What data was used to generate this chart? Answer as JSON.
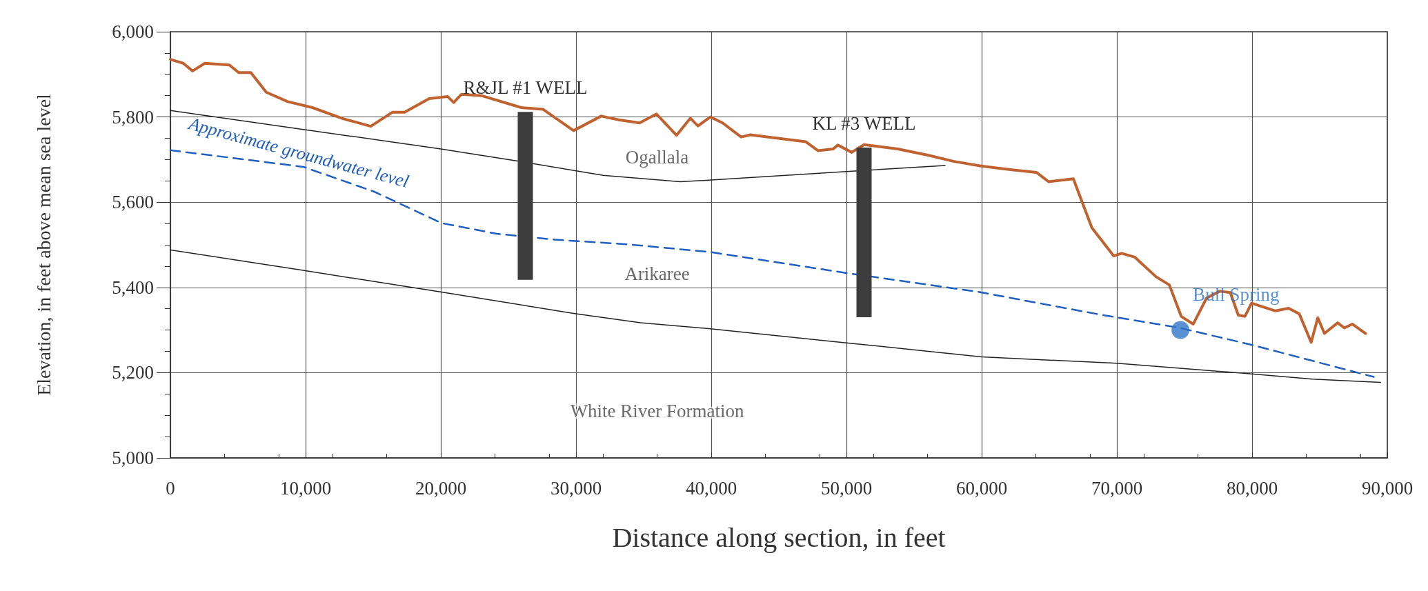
{
  "chart_data": {
    "type": "line",
    "xlabel": "Distance along section, in feet",
    "ylabel": "Elevation, in feet above mean sea level",
    "xlim": [
      0,
      90000
    ],
    "xticks": [
      0,
      {
        "value": 10000,
        "label": "10,000"
      },
      {
        "value": 20000,
        "label": "20,000"
      },
      {
        "value": 30000,
        "label": "30,000"
      },
      {
        "value": 40000,
        "label": "40,000"
      },
      {
        "value": 50000,
        "label": "50,000"
      },
      {
        "value": 60000,
        "label": "60,000"
      },
      {
        "value": 70000,
        "label": "70,000"
      },
      {
        "value": 80000,
        "label": "80,000"
      },
      {
        "value": 90000,
        "label": "90,000"
      }
    ],
    "ylim": [
      5000,
      6000
    ],
    "yticks": [
      {
        "value": 5000,
        "label": "5,000"
      },
      {
        "value": 5200,
        "label": "5,200"
      },
      {
        "value": 5400,
        "label": "5,400"
      },
      {
        "value": 5600,
        "label": "5,600"
      },
      {
        "value": 5800,
        "label": "5,800"
      },
      {
        "value": 6000,
        "label": "6,000"
      }
    ],
    "grid": true,
    "marker": "none",
    "series": [
      {
        "color": "#c0622f",
        "x": [
          0,
          950,
          1640,
          2550,
          4360,
          5050,
          5950,
          7090,
          8680,
          10500,
          12770,
          14820,
          16410,
          17320,
          19140,
          20500,
          20950,
          21520,
          23000,
          25950,
          27550,
          29820,
          31860,
          33230,
          34700,
          35950,
          37430,
          38450,
          39020,
          39930,
          40840,
          42210,
          42890,
          46980,
          47890,
          49020,
          49360,
          50390,
          51300,
          53800,
          56080,
          57900,
          59950,
          62230,
          64050,
          64960,
          66780,
          68150,
          69760,
          70350,
          71330,
          72900,
          73880,
          74760,
          75650,
          76630,
          77600,
          78390,
          78980,
          79470,
          79960,
          81730,
          82700,
          83490,
          84370,
          84860,
          85350,
          86330,
          86820,
          87410,
          88390
        ],
        "values": [
          5935,
          5926,
          5908,
          5926,
          5922,
          5904,
          5904,
          5858,
          5836,
          5822,
          5796,
          5778,
          5811,
          5811,
          5843,
          5848,
          5834,
          5853,
          5850,
          5822,
          5818,
          5768,
          5802,
          5793,
          5786,
          5807,
          5757,
          5797,
          5779,
          5800,
          5786,
          5753,
          5758,
          5742,
          5721,
          5725,
          5734,
          5717,
          5735,
          5725,
          5710,
          5696,
          5685,
          5676,
          5670,
          5648,
          5655,
          5540,
          5474,
          5480,
          5471,
          5425,
          5406,
          5332,
          5314,
          5375,
          5391,
          5388,
          5335,
          5332,
          5363,
          5345,
          5351,
          5338,
          5271,
          5329,
          5292,
          5317,
          5305,
          5314,
          5292
        ]
      },
      {
        "color": "#222222",
        "x": [
          0,
          10000,
          20000,
          26000,
          32000,
          37700,
          40000,
          50000,
          57300
        ],
        "values": [
          5815,
          5770,
          5725,
          5695,
          5663,
          5648,
          5652,
          5672,
          5686
        ]
      },
      {
        "color": "#222222",
        "x": [
          0,
          9820,
          20050,
          29820,
          34770,
          39930,
          50000,
          60000,
          70000,
          80000,
          84470,
          89500
        ],
        "values": [
          5488,
          5440,
          5389,
          5339,
          5317,
          5303,
          5270,
          5237,
          5222,
          5197,
          5185,
          5177
        ]
      },
      {
        "name": "Approximate groundwater level",
        "color": "#1f5fbf",
        "line_style": "dashed",
        "x": [
          0,
          9820,
          15050,
          20050,
          24140,
          28450,
          33900,
          39930,
          50160,
          59700,
          68800,
          74670,
          80000,
          89000
        ],
        "values": [
          5722,
          5683,
          5625,
          5551,
          5526,
          5512,
          5501,
          5483,
          5433,
          5390,
          5336,
          5305,
          5265,
          5190
        ]
      },
      {
        "name": "R&JL #1 WELL",
        "color": "#3d3d3d",
        "x": [
          26250,
          26250
        ],
        "values": [
          5812,
          5418
        ]
      },
      {
        "name": "KL #3 WELL",
        "color": "#3d3d3d",
        "x": [
          51300,
          51300
        ],
        "values": [
          5728,
          5330
        ]
      },
      {
        "type": "scatter",
        "name": "Bull Spring",
        "color": "#2f75c8",
        "marker": "circle",
        "x": [
          74700
        ],
        "values": [
          5300
        ]
      }
    ],
    "annotations": [
      "Ogallala",
      "Arikaree",
      "White River Formation"
    ]
  }
}
